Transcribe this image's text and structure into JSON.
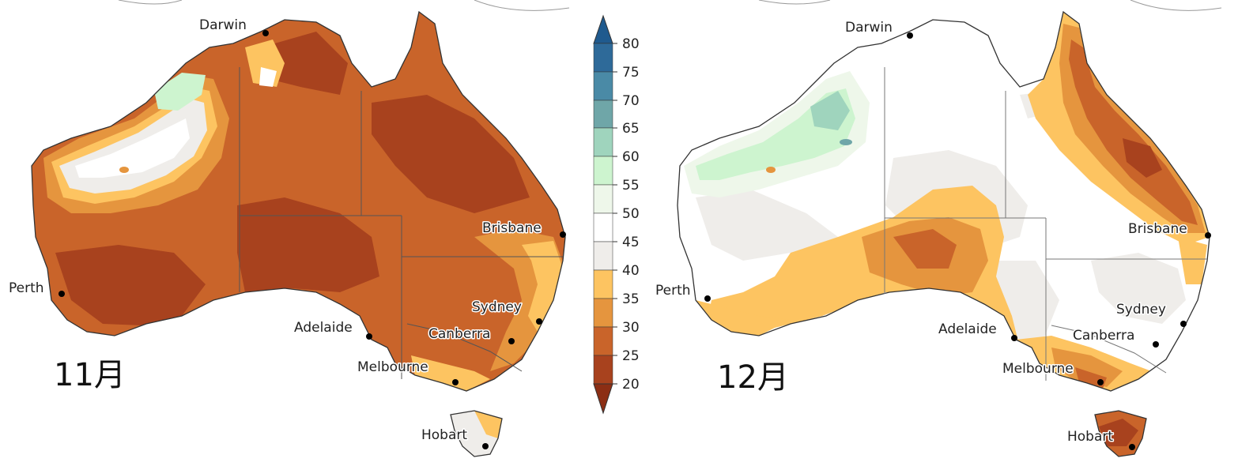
{
  "maps": [
    {
      "month_label": "11月",
      "cities": [
        "Darwin",
        "Brisbane",
        "Perth",
        "Sydney",
        "Adelaide",
        "Canberra",
        "Melbourne",
        "Hobart"
      ]
    },
    {
      "month_label": "12月",
      "cities": [
        "Darwin",
        "Brisbane",
        "Perth",
        "Sydney",
        "Adelaide",
        "Canberra",
        "Melbourne",
        "Hobart"
      ]
    }
  ],
  "legend": {
    "ticks": [
      "80",
      "75",
      "70",
      "65",
      "60",
      "55",
      "50",
      "45",
      "40",
      "35",
      "30",
      "25",
      "20"
    ],
    "colors": {
      "75-80": "#2e6a99",
      "70-75": "#4a8aa6",
      "65-70": "#6fa6a8",
      "60-65": "#9fd4bd",
      "55-60": "#cdf4cf",
      "50-55": "#eef7ea",
      "45-50": "#ffffff",
      "40-45": "#efedea",
      "35-40": "#fdc461",
      "30-35": "#e5953e",
      "25-30": "#c9642a",
      "20-25": "#a8421e",
      "over": "#1f5a8e",
      "under": "#8c2e14"
    }
  }
}
